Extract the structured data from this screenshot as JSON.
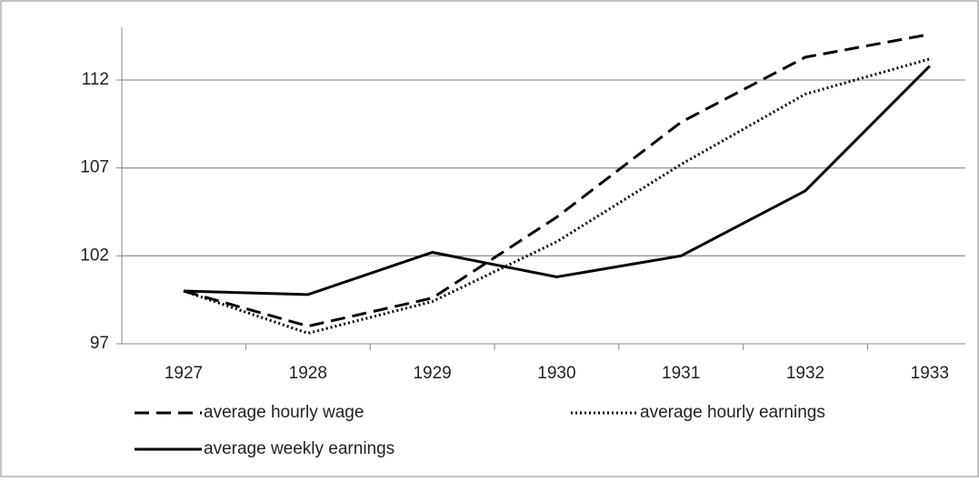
{
  "chart_data": {
    "type": "line",
    "categories": [
      "1927",
      "1928",
      "1929",
      "1930",
      "1931",
      "1932",
      "1933"
    ],
    "series": [
      {
        "name": "average hourly wage",
        "color": "#000000",
        "dash": "dashed",
        "values": [
          100,
          98.0,
          99.6,
          104.2,
          109.6,
          113.3,
          114.6
        ]
      },
      {
        "name": "average hourly earnings",
        "color": "#000000",
        "dash": "dotted",
        "values": [
          100,
          97.6,
          99.4,
          102.8,
          107.2,
          111.2,
          113.2
        ]
      },
      {
        "name": "average weekly earnings",
        "color": "#000000",
        "dash": "solid",
        "values": [
          100,
          99.8,
          102.2,
          100.8,
          102.0,
          105.7,
          112.8
        ]
      }
    ],
    "ylim": [
      97,
      115
    ],
    "yticks": [
      97,
      102,
      107,
      112
    ],
    "grid": true
  }
}
